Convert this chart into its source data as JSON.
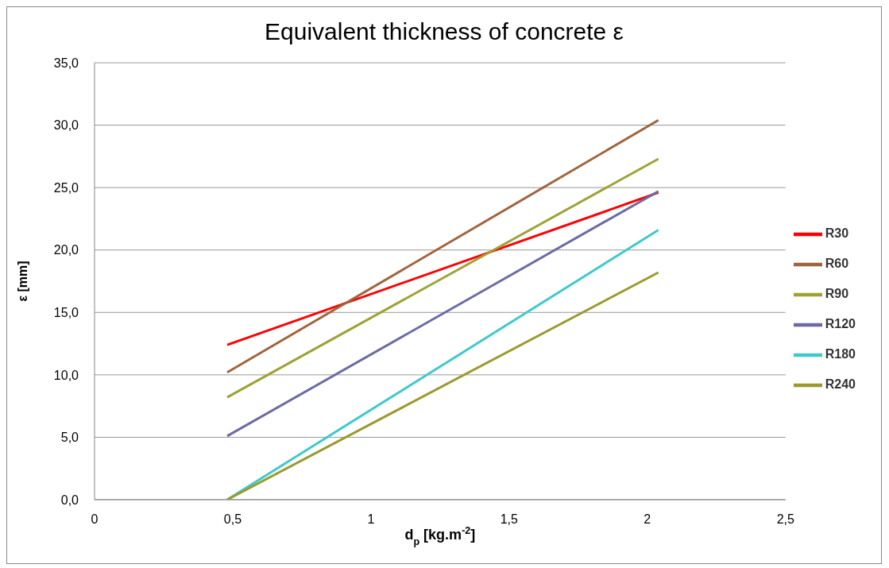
{
  "chart_data": {
    "type": "line",
    "title": "Equivalent thickness of concrete ε",
    "xlabel": "d$_{p}$ [kg.m$^{-2}$]",
    "ylabel": "ε [mm]",
    "x": [
      0.48,
      2.04
    ],
    "series": [
      {
        "name": "R30",
        "color": "#ff0000",
        "values": [
          12.4,
          24.6
        ]
      },
      {
        "name": "R60",
        "color": "#a0643c",
        "values": [
          10.2,
          30.4
        ]
      },
      {
        "name": "R90",
        "color": "#9ea235",
        "values": [
          8.2,
          27.3
        ]
      },
      {
        "name": "R120",
        "color": "#6b6ba3",
        "values": [
          5.1,
          24.7
        ]
      },
      {
        "name": "R180",
        "color": "#3fc9c9",
        "values": [
          0,
          21.6
        ]
      },
      {
        "name": "R240",
        "color": "#9a9a2e",
        "values": [
          0,
          18.2
        ]
      }
    ],
    "xlim": [
      0,
      2.5
    ],
    "xticks": [
      0,
      {
        "value": 0.5,
        "label": "0,5"
      },
      1,
      {
        "value": 1.5,
        "label": "1,5"
      },
      2,
      {
        "value": 2.5,
        "label": "2,5"
      }
    ],
    "ylim": [
      0,
      35
    ],
    "yticks": [
      {
        "value": 0,
        "label": "0,0"
      },
      {
        "value": 5,
        "label": "5,0"
      },
      {
        "value": 10,
        "label": "10,0"
      },
      {
        "value": 15,
        "label": "15,0"
      },
      {
        "value": 20,
        "label": "20,0"
      },
      {
        "value": 25,
        "label": "25,0"
      },
      {
        "value": 30,
        "label": "30,0"
      },
      {
        "value": 35,
        "label": "35,0"
      }
    ],
    "grid": "y",
    "legend": "right",
    "marker": "none",
    "line_style": "solid"
  }
}
